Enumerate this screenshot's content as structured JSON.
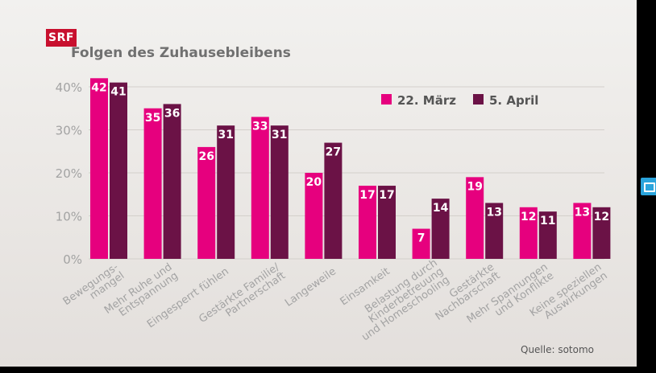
{
  "logo": "SRF",
  "title": "Folgen des Zuhausebleibens",
  "source": "Quelle: sotomo",
  "colors": {
    "series1": "#e6007e",
    "series2": "#6b1246",
    "grid": "#d3cfcb",
    "axis_text": "#a3a3a3"
  },
  "chart_data": {
    "type": "bar",
    "title": "Folgen des Zuhausebleibens",
    "xlabel": "",
    "ylabel": "",
    "ylim": [
      0,
      40
    ],
    "yticks": [
      "0%",
      "10%",
      "20%",
      "30%",
      "40%"
    ],
    "grid": true,
    "legend_position": "top-right",
    "categories": [
      [
        "Bewegungs-",
        "mangel"
      ],
      [
        "Mehr Ruhe und",
        "Entspannung"
      ],
      [
        "Eingesperrt fühlen"
      ],
      [
        "Gestärkte Familie/",
        "Partnerschaft"
      ],
      [
        "Langeweile"
      ],
      [
        "Einsamkeit"
      ],
      [
        "Belastung durch",
        "Kinderbetreuung",
        "und Homeschooling"
      ],
      [
        "Gestärkte",
        "Nachbarschaft"
      ],
      [
        "Mehr Spannungen",
        "und Konflikte"
      ],
      [
        "Keine speziellen",
        "Auswirkungen"
      ]
    ],
    "series": [
      {
        "name": "22. März",
        "values": [
          42,
          35,
          26,
          33,
          20,
          17,
          7,
          19,
          12,
          13
        ]
      },
      {
        "name": "5. April",
        "values": [
          41,
          36,
          31,
          31,
          27,
          17,
          14,
          13,
          11,
          12
        ]
      }
    ]
  }
}
